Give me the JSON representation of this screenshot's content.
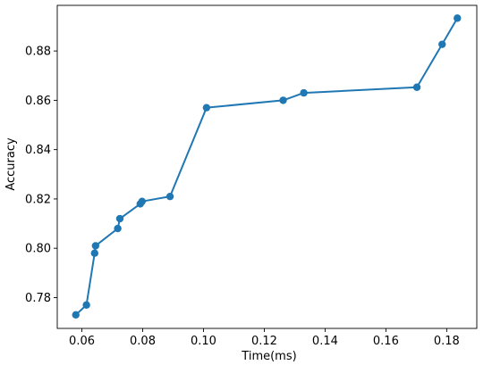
{
  "chart_data": {
    "type": "line",
    "title": "",
    "xlabel": "Time(ms)",
    "ylabel": "Accuracy",
    "xlim": [
      0.0519,
      0.1899
    ],
    "ylim": [
      0.7675,
      0.8985
    ],
    "grid": false,
    "legend": "none",
    "x_ticks": [
      0.06,
      0.08,
      0.1,
      0.12,
      0.14,
      0.16,
      0.18
    ],
    "x_tick_labels": [
      "0.06",
      "0.08",
      "0.10",
      "0.12",
      "0.14",
      "0.16",
      "0.18"
    ],
    "y_ticks": [
      0.78,
      0.8,
      0.82,
      0.84,
      0.86,
      0.88
    ],
    "y_tick_labels": [
      "0.78",
      "0.80",
      "0.82",
      "0.84",
      "0.86",
      "0.88"
    ],
    "series": [
      {
        "color": "#1f77b4",
        "x": [
          0.058,
          0.0615,
          0.0642,
          0.0645,
          0.0718,
          0.0725,
          0.0792,
          0.0798,
          0.089,
          0.101,
          0.1262,
          0.133,
          0.1702,
          0.1785,
          0.1835
        ],
        "y": [
          0.773,
          0.777,
          0.798,
          0.801,
          0.808,
          0.812,
          0.818,
          0.819,
          0.821,
          0.857,
          0.86,
          0.863,
          0.8653,
          0.8827,
          0.8933
        ]
      }
    ]
  }
}
